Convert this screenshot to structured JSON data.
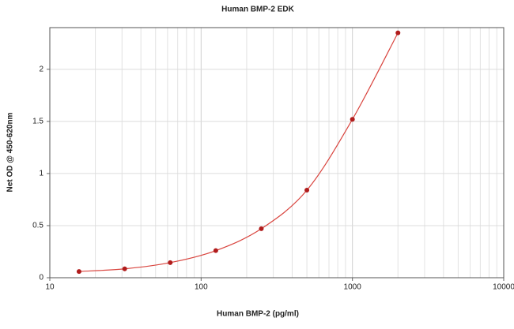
{
  "chart_data": {
    "type": "scatter",
    "title": "Human BMP-2 EDK",
    "x_label": "Human BMP-2 (pg/ml)",
    "y_label": "Net OD @ 450-620nm",
    "x": [
      15.6,
      31.25,
      62.5,
      125,
      250,
      500,
      1000,
      2000
    ],
    "values": [
      0.06,
      0.085,
      0.145,
      0.26,
      0.47,
      0.84,
      1.52,
      2.35
    ],
    "color": "#b01c1c",
    "line": true,
    "x_log": true,
    "xlim": [
      10,
      10000
    ],
    "xticks": [
      10,
      100,
      1000,
      10000
    ],
    "x_minor_ticks": [
      20,
      30,
      40,
      50,
      60,
      70,
      80,
      90,
      200,
      300,
      400,
      500,
      600,
      700,
      800,
      900,
      2000,
      3000,
      4000,
      5000,
      6000,
      7000,
      8000,
      9000
    ],
    "ylim": [
      0,
      2.4
    ],
    "yticks": [
      0,
      0.5,
      1,
      1.5,
      2
    ],
    "grid": true
  }
}
